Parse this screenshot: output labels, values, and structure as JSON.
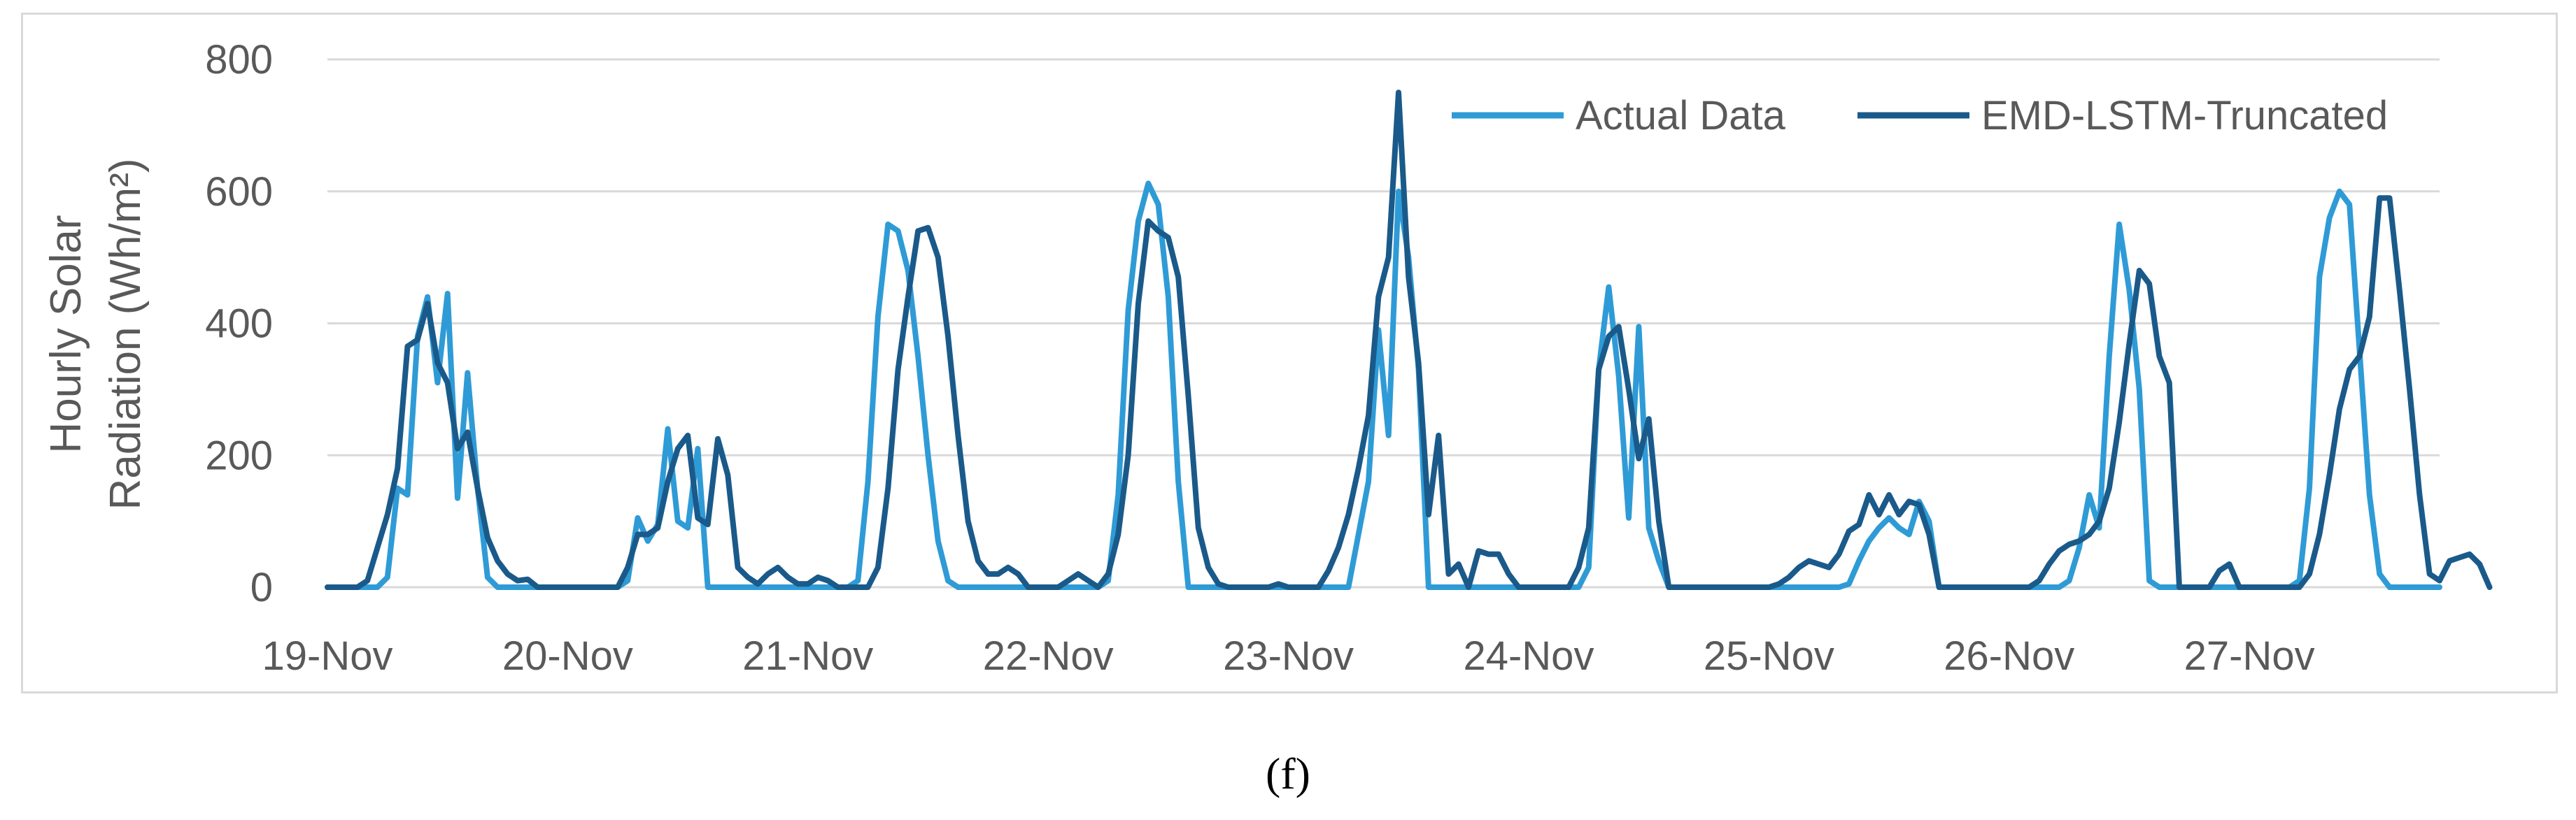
{
  "caption": "(f)",
  "chart_data": {
    "type": "line",
    "title": "",
    "ylabel_line1": "Hourly Solar",
    "ylabel_line2": "Radiation (Wh/m²)",
    "xlabel": "",
    "ylim": [
      0,
      800
    ],
    "y_ticks": [
      "0",
      "200",
      "400",
      "600",
      "800"
    ],
    "grid": "horizontal",
    "legend_position": "top-right",
    "x_tick_labels": [
      "19-Nov",
      "20-Nov",
      "21-Nov",
      "22-Nov",
      "23-Nov",
      "24-Nov",
      "25-Nov",
      "26-Nov",
      "27-Nov"
    ],
    "points_per_day": 24,
    "series": [
      {
        "name": "Actual Data",
        "color": "#2f9bd6",
        "values": [
          0,
          0,
          0,
          0,
          0,
          0,
          15,
          150,
          140,
          380,
          440,
          310,
          445,
          135,
          325,
          150,
          15,
          0,
          0,
          0,
          0,
          0,
          0,
          0,
          0,
          0,
          0,
          0,
          0,
          0,
          10,
          105,
          70,
          95,
          240,
          100,
          90,
          210,
          0,
          0,
          0,
          0,
          0,
          0,
          0,
          0,
          0,
          0,
          0,
          0,
          0,
          0,
          0,
          10,
          160,
          410,
          550,
          540,
          480,
          350,
          200,
          70,
          10,
          0,
          0,
          0,
          0,
          0,
          0,
          0,
          0,
          0,
          0,
          0,
          0,
          0,
          0,
          0,
          10,
          140,
          420,
          555,
          612,
          580,
          440,
          160,
          0,
          0,
          0,
          0,
          0,
          0,
          0,
          0,
          0,
          0,
          0,
          0,
          0,
          0,
          0,
          0,
          0,
          80,
          160,
          390,
          230,
          600,
          500,
          330,
          0,
          0,
          0,
          0,
          0,
          0,
          0,
          0,
          0,
          0,
          0,
          0,
          0,
          0,
          0,
          0,
          30,
          330,
          455,
          320,
          105,
          395,
          90,
          40,
          0,
          0,
          0,
          0,
          0,
          0,
          0,
          0,
          0,
          0,
          0,
          0,
          0,
          0,
          0,
          0,
          0,
          0,
          5,
          40,
          70,
          90,
          105,
          90,
          80,
          130,
          100,
          0,
          0,
          0,
          0,
          0,
          0,
          0,
          0,
          0,
          0,
          0,
          0,
          0,
          10,
          60,
          140,
          90,
          350,
          550,
          450,
          300,
          10,
          0,
          0,
          0,
          0,
          0,
          0,
          0,
          0,
          0,
          0,
          0,
          0,
          0,
          0,
          10,
          150,
          470,
          560,
          600,
          580,
          360,
          140,
          20,
          0,
          0,
          0,
          0,
          0,
          0
        ]
      },
      {
        "name": "EMD-LSTM-Truncated",
        "color": "#1a5a8a",
        "values": [
          0,
          0,
          0,
          0,
          10,
          60,
          110,
          180,
          365,
          375,
          430,
          340,
          310,
          210,
          235,
          150,
          75,
          40,
          20,
          10,
          12,
          0,
          0,
          0,
          0,
          0,
          0,
          0,
          0,
          0,
          30,
          80,
          80,
          90,
          160,
          210,
          230,
          105,
          95,
          225,
          170,
          30,
          15,
          5,
          20,
          30,
          15,
          5,
          5,
          15,
          10,
          0,
          0,
          0,
          0,
          30,
          150,
          330,
          440,
          540,
          545,
          500,
          380,
          230,
          100,
          40,
          20,
          20,
          30,
          20,
          0,
          0,
          0,
          0,
          10,
          20,
          10,
          0,
          20,
          80,
          200,
          430,
          555,
          540,
          530,
          470,
          290,
          90,
          30,
          5,
          0,
          0,
          0,
          0,
          0,
          5,
          0,
          0,
          0,
          0,
          25,
          60,
          110,
          180,
          260,
          440,
          500,
          750,
          470,
          340,
          110,
          230,
          20,
          35,
          0,
          55,
          50,
          50,
          20,
          0,
          0,
          0,
          0,
          0,
          0,
          30,
          90,
          330,
          380,
          395,
          300,
          195,
          255,
          100,
          0,
          0,
          0,
          0,
          0,
          0,
          0,
          0,
          0,
          0,
          0,
          5,
          15,
          30,
          40,
          35,
          30,
          50,
          85,
          95,
          140,
          110,
          140,
          110,
          130,
          125,
          80,
          0,
          0,
          0,
          0,
          0,
          0,
          0,
          0,
          0,
          0,
          10,
          35,
          55,
          65,
          70,
          80,
          100,
          150,
          250,
          370,
          480,
          460,
          350,
          310,
          0,
          0,
          0,
          0,
          25,
          35,
          0,
          0,
          0,
          0,
          0,
          0,
          0,
          20,
          80,
          170,
          270,
          330,
          350,
          410,
          590,
          590,
          450,
          300,
          140,
          20,
          10,
          40,
          45,
          50,
          35,
          0
        ]
      }
    ]
  }
}
